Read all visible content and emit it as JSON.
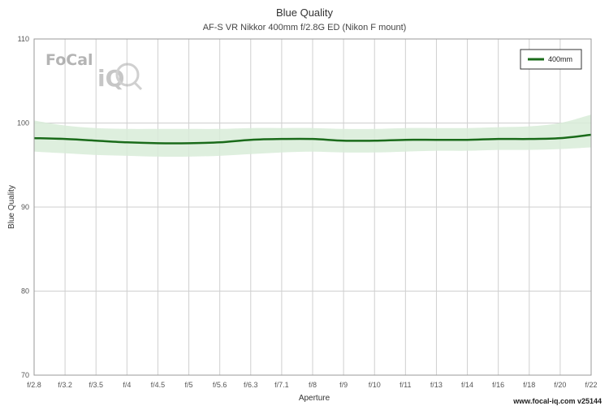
{
  "chart_data": {
    "type": "line",
    "title": "Blue Quality",
    "subtitle": "AF-S VR Nikkor 400mm f/2.8G ED (Nikon F mount)",
    "xlabel": "Aperture",
    "ylabel": "Blue Quality",
    "ylim": [
      70,
      110
    ],
    "yticks": [
      70,
      80,
      90,
      100,
      110
    ],
    "categories": [
      "f/2.8",
      "f/3.2",
      "f/3.5",
      "f/4",
      "f/4.5",
      "f/5",
      "f/5.6",
      "f/6.3",
      "f/7.1",
      "f/8",
      "f/9",
      "f/10",
      "f/11",
      "f/13",
      "f/14",
      "f/16",
      "f/18",
      "f/20",
      "f/22"
    ],
    "series": [
      {
        "name": "400mm",
        "color": "#1a6b1a",
        "band_color": "#d8ecd8",
        "values": [
          98.2,
          98.1,
          97.9,
          97.7,
          97.6,
          97.6,
          97.7,
          98.0,
          98.1,
          98.1,
          97.9,
          97.9,
          98.0,
          98.0,
          98.0,
          98.1,
          98.1,
          98.2,
          98.6
        ],
        "upper": [
          100.3,
          99.7,
          99.4,
          99.3,
          99.3,
          99.3,
          99.3,
          99.4,
          99.4,
          99.4,
          99.3,
          99.3,
          99.4,
          99.4,
          99.4,
          99.5,
          99.6,
          100.0,
          101.0
        ],
        "lower": [
          96.6,
          96.4,
          96.2,
          96.1,
          96.0,
          96.0,
          96.1,
          96.3,
          96.5,
          96.6,
          96.5,
          96.5,
          96.6,
          96.7,
          96.7,
          96.8,
          96.8,
          96.9,
          97.1
        ]
      }
    ],
    "grid": true,
    "legend_position": "top-right"
  },
  "logo": {
    "text_focal": "FoCal",
    "text_iq": "iQ"
  },
  "footer": "www.focal-iq.com v25144"
}
